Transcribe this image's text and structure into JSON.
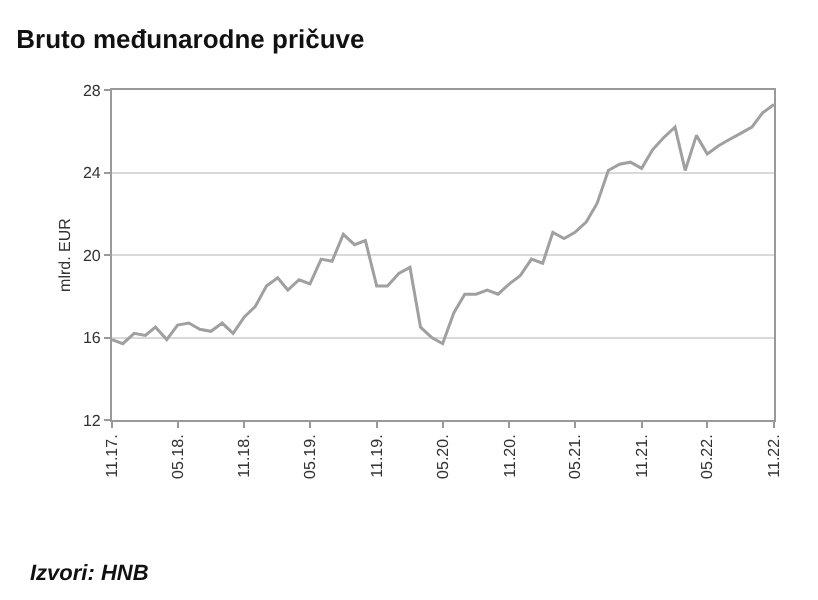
{
  "chart_data": {
    "type": "line",
    "title": "Bruto međunarodne pričuve",
    "ylabel": "mlrd. EUR",
    "annotations": [
      "Izvori: HNB"
    ],
    "x": [
      "2017-11",
      "2017-12",
      "2018-01",
      "2018-02",
      "2018-03",
      "2018-04",
      "2018-05",
      "2018-06",
      "2018-07",
      "2018-08",
      "2018-09",
      "2018-10",
      "2018-11",
      "2018-12",
      "2019-01",
      "2019-02",
      "2019-03",
      "2019-04",
      "2019-05",
      "2019-06",
      "2019-07",
      "2019-08",
      "2019-09",
      "2019-10",
      "2019-11",
      "2019-12",
      "2020-01",
      "2020-02",
      "2020-03",
      "2020-04",
      "2020-05",
      "2020-06",
      "2020-07",
      "2020-08",
      "2020-09",
      "2020-10",
      "2020-11",
      "2020-12",
      "2021-01",
      "2021-02",
      "2021-03",
      "2021-04",
      "2021-05",
      "2021-06",
      "2021-07",
      "2021-08",
      "2021-09",
      "2021-10",
      "2021-11",
      "2021-12",
      "2022-01",
      "2022-02",
      "2022-03",
      "2022-04",
      "2022-05",
      "2022-06",
      "2022-07",
      "2022-08",
      "2022-09",
      "2022-10",
      "2022-11"
    ],
    "series": [
      {
        "color": "#a0a0a0",
        "values": [
          15.9,
          15.7,
          16.2,
          16.1,
          16.5,
          15.9,
          16.6,
          16.7,
          16.4,
          16.3,
          16.7,
          16.2,
          17.0,
          17.5,
          18.5,
          18.9,
          18.3,
          18.8,
          18.6,
          19.8,
          19.7,
          21.0,
          20.5,
          20.7,
          18.5,
          18.5,
          19.1,
          19.4,
          16.5,
          16.0,
          15.7,
          17.2,
          18.1,
          18.1,
          18.3,
          18.1,
          18.6,
          19.0,
          19.8,
          19.6,
          21.1,
          20.8,
          21.1,
          21.6,
          22.5,
          24.1,
          24.4,
          24.5,
          24.2,
          25.1,
          25.7,
          26.2,
          24.1,
          25.8,
          24.9,
          25.3,
          25.6,
          25.9,
          26.2,
          26.9,
          27.3
        ]
      }
    ],
    "xlim": [
      "2017-11",
      "2022-11"
    ],
    "xticks": [
      {
        "value": "2017-11",
        "label": "11.17."
      },
      {
        "value": "2018-05",
        "label": "05.18."
      },
      {
        "value": "2018-11",
        "label": "11.18."
      },
      {
        "value": "2019-05",
        "label": "05.19."
      },
      {
        "value": "2019-11",
        "label": "11.19."
      },
      {
        "value": "2020-05",
        "label": "05.20."
      },
      {
        "value": "2020-11",
        "label": "11.20."
      },
      {
        "value": "2021-05",
        "label": "05.21."
      },
      {
        "value": "2021-11",
        "label": "11.21."
      },
      {
        "value": "2022-05",
        "label": "05.22."
      },
      {
        "value": "2022-11",
        "label": "11.22."
      }
    ],
    "ylim": [
      12,
      28
    ],
    "yticks": [
      12,
      16,
      20,
      24,
      28
    ],
    "grid": "y",
    "marker": "none",
    "line_style": "solid"
  }
}
